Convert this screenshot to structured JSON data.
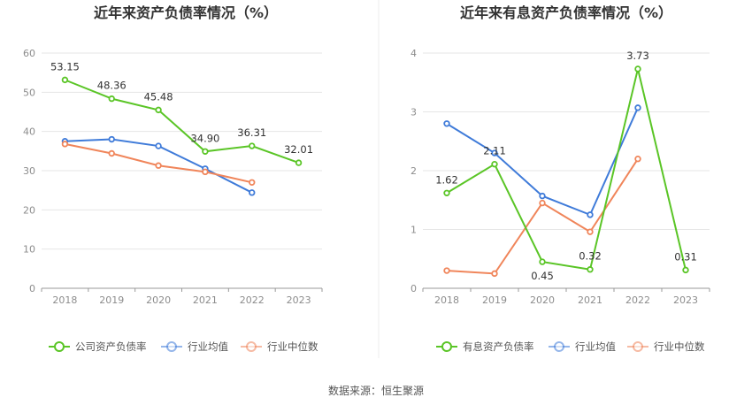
{
  "chart_data": [
    {
      "type": "line",
      "title": "近年来资产负债率情况（%）",
      "xlabel": "",
      "ylabel": "",
      "categories": [
        "2018",
        "2019",
        "2020",
        "2021",
        "2022",
        "2023"
      ],
      "ylim": [
        0,
        60
      ],
      "yticks": [
        0,
        10,
        20,
        30,
        40,
        50,
        60
      ],
      "grid": true,
      "legend_position": "bottom",
      "series": [
        {
          "name": "公司资产负债率",
          "color": "#5ac526",
          "values": [
            53.15,
            48.36,
            45.48,
            34.9,
            36.31,
            32.01
          ],
          "labels": [
            "53.15",
            "48.36",
            "45.48",
            "34.90",
            "36.31",
            "32.01"
          ]
        },
        {
          "name": "行业均值",
          "color": "#3f7bd9",
          "values": [
            37.5,
            38.0,
            36.3,
            30.5,
            24.4,
            null
          ]
        },
        {
          "name": "行业中位数",
          "color": "#f0855a",
          "values": [
            36.8,
            34.4,
            31.3,
            29.7,
            27.0,
            null
          ]
        }
      ]
    },
    {
      "type": "line",
      "title": "近年来有息资产负债率情况（%）",
      "xlabel": "",
      "ylabel": "",
      "categories": [
        "2018",
        "2019",
        "2020",
        "2021",
        "2022",
        "2023"
      ],
      "ylim": [
        0,
        4
      ],
      "yticks": [
        0,
        1,
        2,
        3,
        4
      ],
      "grid": true,
      "legend_position": "bottom",
      "series": [
        {
          "name": "有息资产负债率",
          "color": "#5ac526",
          "values": [
            1.62,
            2.11,
            0.45,
            0.32,
            3.73,
            0.31
          ],
          "labels": [
            "1.62",
            "2.11",
            "0.45",
            "0.32",
            "3.73",
            "0.31"
          ]
        },
        {
          "name": "行业均值",
          "color": "#3f7bd9",
          "values": [
            2.8,
            2.3,
            1.57,
            1.25,
            3.07,
            null
          ]
        },
        {
          "name": "行业中位数",
          "color": "#f0855a",
          "values": [
            0.3,
            0.25,
            1.45,
            0.96,
            2.2,
            null
          ]
        }
      ]
    }
  ],
  "source": "数据来源：恒生聚源"
}
